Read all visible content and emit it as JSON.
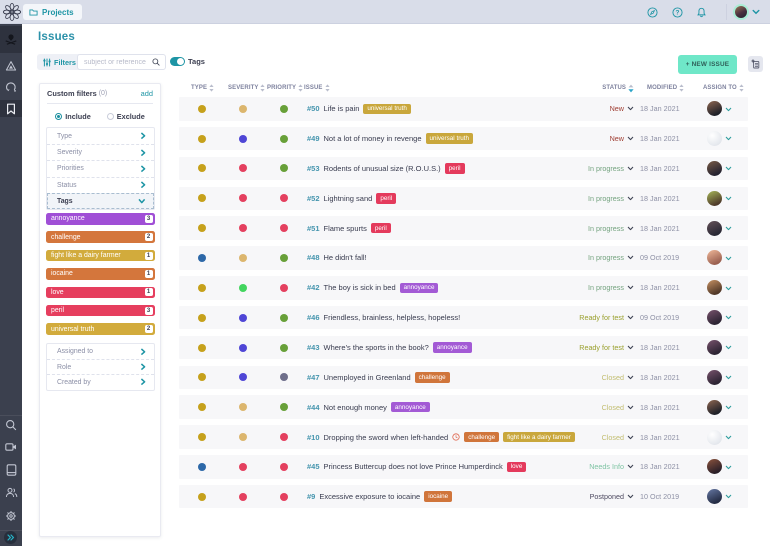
{
  "topbar": {
    "breadcrumb": "Projects",
    "icons": [
      "taiga-logo",
      "folder-icon",
      "compass-icon",
      "help-icon",
      "notifications-bell-icon",
      "user-avatar",
      "chevron-down-icon"
    ]
  },
  "sidebar": {
    "top_items": [
      {
        "icon": "project-logo-skull",
        "name": "project"
      },
      {
        "icon": "epics-triangle",
        "name": "epics"
      },
      {
        "icon": "sprint-circular-arrow",
        "name": "scrum"
      },
      {
        "icon": "issues-bookmark",
        "name": "issues",
        "active": true
      }
    ],
    "bottom_items": [
      {
        "icon": "search",
        "name": "search"
      },
      {
        "icon": "video-camera",
        "name": "meet-up"
      },
      {
        "icon": "wiki-tablet",
        "name": "wiki"
      },
      {
        "icon": "team-people",
        "name": "team"
      },
      {
        "icon": "settings-gear",
        "name": "settings"
      },
      {
        "icon": "double-chevron-expand",
        "name": "expand"
      }
    ]
  },
  "page": {
    "title": "Issues"
  },
  "toolbar": {
    "filters_label": "Filters",
    "search_placeholder": "subject or reference",
    "search_value": "",
    "tags_toggle_label": "Tags",
    "tags_toggle_on": true,
    "new_issue_label": "+ NEW ISSUE",
    "bulk_add_icon": "add-list-icon"
  },
  "filters_panel": {
    "title": "Custom filters",
    "count": "(0)",
    "add_label": "add",
    "include_label": "Include",
    "exclude_label": "Exclude",
    "include_selected": true,
    "categories": [
      {
        "label": "Type",
        "expanded": false
      },
      {
        "label": "Severity",
        "expanded": false
      },
      {
        "label": "Priorities",
        "expanded": false
      },
      {
        "label": "Status",
        "expanded": false
      },
      {
        "label": "Tags",
        "expanded": true
      }
    ],
    "tags": [
      {
        "label": "annoyance",
        "count": "3",
        "color": "#a04fd6"
      },
      {
        "label": "challenge",
        "count": "2",
        "color": "#d4763c"
      },
      {
        "label": "fight like a dairy farmer",
        "count": "1",
        "color": "#d2ab3c"
      },
      {
        "label": "iocaine",
        "count": "1",
        "color": "#d4763c"
      },
      {
        "label": "love",
        "count": "1",
        "color": "#e63e5e"
      },
      {
        "label": "peril",
        "count": "3",
        "color": "#e63e5e"
      },
      {
        "label": "universal truth",
        "count": "2",
        "color": "#d2ab3c"
      }
    ],
    "more_categories": [
      {
        "label": "Assigned to"
      },
      {
        "label": "Role"
      },
      {
        "label": "Created by"
      }
    ]
  },
  "table": {
    "columns": [
      "TYPE",
      "SEVERITY",
      "PRIORITY",
      "ISSUE",
      "STATUS",
      "MODIFIED",
      "ASSIGN TO"
    ],
    "sorted_column": "STATUS",
    "accent_sort_color": "#2aa4c8",
    "rows": [
      {
        "ref": "#50",
        "subject": "Life is pain",
        "type_color": "#c6a11c",
        "severity_color": "#dcb66e",
        "priority_color": "#68a039",
        "tags": [
          {
            "label": "universal truth",
            "color": "#c9a73c"
          }
        ],
        "status": "New",
        "status_color": "#9e3c31",
        "modified": "18 Jan 2021",
        "avatar": {
          "c1": "#7a5a4a",
          "c2": "#1e2028"
        }
      },
      {
        "ref": "#49",
        "subject": "Not a lot of money in revenge",
        "type_color": "#c6a11c",
        "severity_color": "#4f46d6",
        "priority_color": "#68a039",
        "tags": [
          {
            "label": "universal truth",
            "color": "#c9a73c"
          }
        ],
        "status": "New",
        "status_color": "#9e3c31",
        "modified": "18 Jan 2021",
        "avatar": null
      },
      {
        "ref": "#53",
        "subject": "Rodents of unusual size (R.O.U.S.)",
        "type_color": "#c6a11c",
        "severity_color": "#e4405f",
        "priority_color": "#68a039",
        "tags": [
          {
            "label": "peril",
            "color": "#e43a5c"
          }
        ],
        "status": "In progress",
        "status_color": "#74a37f",
        "modified": "18 Jan 2021",
        "avatar": {
          "c1": "#6a5142",
          "c2": "#242230"
        }
      },
      {
        "ref": "#52",
        "subject": "Lightning sand",
        "type_color": "#c6a11c",
        "severity_color": "#e4405f",
        "priority_color": "#e4405f",
        "tags": [
          {
            "label": "peril",
            "color": "#e43a5c"
          }
        ],
        "status": "In progress",
        "status_color": "#74a37f",
        "modified": "18 Jan 2021",
        "avatar": {
          "c1": "#97a050",
          "c2": "#4e3a2a"
        }
      },
      {
        "ref": "#51",
        "subject": "Flame spurts",
        "type_color": "#c6a11c",
        "severity_color": "#e4405f",
        "priority_color": "#e4405f",
        "tags": [
          {
            "label": "peril",
            "color": "#e43a5c"
          }
        ],
        "status": "In progress",
        "status_color": "#74a37f",
        "modified": "18 Jan 2021",
        "avatar": {
          "c1": "#5a4a52",
          "c2": "#282734"
        }
      },
      {
        "ref": "#48",
        "subject": "He didn't fall!",
        "type_color": "#2d68a8",
        "severity_color": "#dcb66e",
        "priority_color": "#68a039",
        "tags": [],
        "status": "In progress",
        "status_color": "#74a37f",
        "modified": "09 Oct 2019",
        "avatar": {
          "c1": "#e0a88c",
          "c2": "#9a6050"
        }
      },
      {
        "ref": "#42",
        "subject": "The boy is sick in bed",
        "type_color": "#c6a11c",
        "severity_color": "#43d55f",
        "priority_color": "#e4405f",
        "tags": [
          {
            "label": "annoyance",
            "color": "#a35ad5"
          }
        ],
        "status": "In progress",
        "status_color": "#74a37f",
        "modified": "18 Jan 2021",
        "avatar": {
          "c1": "#b08058",
          "c2": "#503828"
        }
      },
      {
        "ref": "#46",
        "subject": "Friendless, brainless, helpless, hopeless!",
        "type_color": "#c6a11c",
        "severity_color": "#4f46d6",
        "priority_color": "#68a039",
        "tags": [],
        "status": "Ready for test",
        "status_color": "#9aa02e",
        "modified": "09 Oct 2019",
        "avatar": {
          "c1": "#6a4a62",
          "c2": "#2c2433"
        }
      },
      {
        "ref": "#43",
        "subject": "Where's the sports in the book?",
        "type_color": "#c6a11c",
        "severity_color": "#4f46d6",
        "priority_color": "#68a039",
        "tags": [
          {
            "label": "annoyance",
            "color": "#a35ad5"
          }
        ],
        "status": "Ready for test",
        "status_color": "#9aa02e",
        "modified": "18 Jan 2021",
        "avatar": {
          "c1": "#6a4a62",
          "c2": "#2c2433"
        }
      },
      {
        "ref": "#47",
        "subject": "Unemployed in Greenland",
        "type_color": "#c6a11c",
        "severity_color": "#4f46d6",
        "priority_color": "#6e6e8a",
        "tags": [
          {
            "label": "challenge",
            "color": "#d0753b"
          }
        ],
        "status": "Closed",
        "status_color": "#c2bd70",
        "modified": "18 Jan 2021",
        "avatar": {
          "c1": "#6a4a62",
          "c2": "#2c2433"
        }
      },
      {
        "ref": "#44",
        "subject": "Not enough money",
        "type_color": "#c6a11c",
        "severity_color": "#dcb66e",
        "priority_color": "#68a039",
        "tags": [
          {
            "label": "annoyance",
            "color": "#a35ad5"
          }
        ],
        "status": "Closed",
        "status_color": "#c2bd70",
        "modified": "18 Jan 2021",
        "avatar": {
          "c1": "#7a5a4a",
          "c2": "#1e2028"
        }
      },
      {
        "ref": "#10",
        "subject": "Dropping the sword when left-handed",
        "type_color": "#c6a11c",
        "severity_color": "#dcb66e",
        "priority_color": "#e4405f",
        "clock_icon": true,
        "tags": [
          {
            "label": "challenge",
            "color": "#d0753b"
          },
          {
            "label": "fight like a dairy farmer",
            "color": "#c9a73c"
          }
        ],
        "status": "Closed",
        "status_color": "#c2bd70",
        "modified": "18 Jan 2021",
        "avatar": null
      },
      {
        "ref": "#45",
        "subject": "Princess Buttercup does not love Prince Humperdinck",
        "type_color": "#2d68a8",
        "severity_color": "#e4405f",
        "priority_color": "#e4405f",
        "tags": [
          {
            "label": "love",
            "color": "#e43a5c"
          }
        ],
        "status": "Needs Info",
        "status_color": "#7fc4a4",
        "modified": "18 Jan 2021",
        "avatar": {
          "c1": "#7a4a3a",
          "c2": "#2a1f28"
        }
      },
      {
        "ref": "#9",
        "subject": "Excessive exposure to iocaine",
        "type_color": "#c6a11c",
        "severity_color": "#e4405f",
        "priority_color": "#e4405f",
        "tags": [
          {
            "label": "iocaine",
            "color": "#d0753b"
          }
        ],
        "status": "Postponed",
        "status_color": "#4d4960",
        "modified": "10 Oct 2019",
        "avatar": {
          "c1": "#5a6a92",
          "c2": "#242c44"
        }
      }
    ]
  }
}
